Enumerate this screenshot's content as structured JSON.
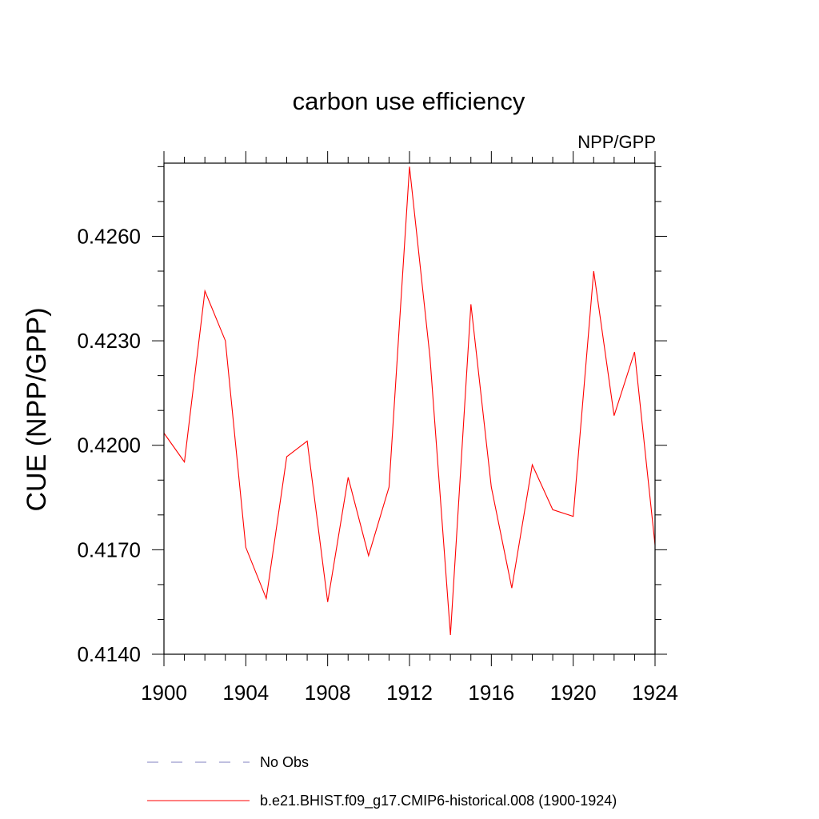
{
  "chart_data": {
    "type": "line",
    "title": "carbon use efficiency",
    "subtitle": "NPP/GPP",
    "ylabel": "CUE  (NPP/GPP)",
    "xlabel": "",
    "xlim": [
      1900,
      1924
    ],
    "ylim": [
      0.414,
      0.4281
    ],
    "x_ticks": [
      1900,
      1904,
      1908,
      1912,
      1916,
      1920,
      1924
    ],
    "y_ticks": [
      0.414,
      0.417,
      0.42,
      0.423,
      0.426
    ],
    "y_tick_labels": [
      "0.4140",
      "0.4170",
      "0.4200",
      "0.4230",
      "0.4260"
    ],
    "x_minor_step": 1,
    "y_minor_step": 0.001,
    "grid": false,
    "series": [
      {
        "name": "b.e21.BHIST.f09_g17.CMIP6-historical.008 (1900-1924)",
        "color": "#ff0000",
        "style": "solid",
        "x": [
          1900,
          1901,
          1902,
          1903,
          1904,
          1905,
          1906,
          1907,
          1908,
          1909,
          1910,
          1911,
          1912,
          1913,
          1914,
          1915,
          1916,
          1917,
          1918,
          1919,
          1920,
          1921,
          1922,
          1923,
          1924
        ],
        "values": [
          0.42035,
          0.41952,
          0.42443,
          0.423,
          0.41707,
          0.4156,
          0.41967,
          0.42012,
          0.4155,
          0.41908,
          0.41683,
          0.4188,
          0.428,
          0.42253,
          0.41455,
          0.42405,
          0.4188,
          0.4159,
          0.41944,
          0.41815,
          0.41796,
          0.425,
          0.42085,
          0.42268,
          0.41714
        ]
      }
    ],
    "legend": {
      "placement": "bottom-left",
      "entries": [
        {
          "label": "No Obs",
          "color": "#8080c0",
          "style": "dashed"
        },
        {
          "label": "b.e21.BHIST.f09_g17.CMIP6-historical.008 (1900-1924)",
          "color": "#ff0000",
          "style": "solid"
        }
      ]
    }
  }
}
